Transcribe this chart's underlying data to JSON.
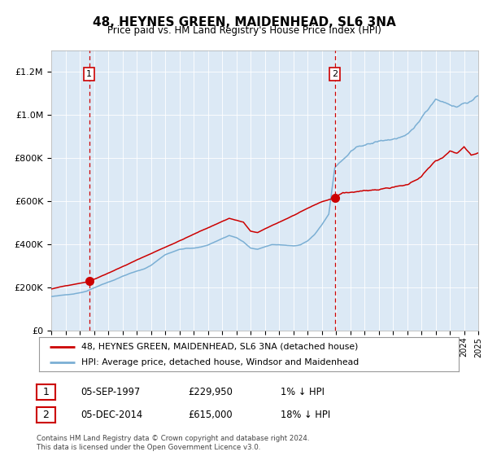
{
  "title": "48, HEYNES GREEN, MAIDENHEAD, SL6 3NA",
  "subtitle": "Price paid vs. HM Land Registry's House Price Index (HPI)",
  "legend_line1": "48, HEYNES GREEN, MAIDENHEAD, SL6 3NA (detached house)",
  "legend_line2": "HPI: Average price, detached house, Windsor and Maidenhead",
  "annotation1_date": "05-SEP-1997",
  "annotation1_price": "£229,950",
  "annotation1_hpi": "1% ↓ HPI",
  "annotation1_year": 1997.67,
  "annotation1_value": 229950,
  "annotation2_date": "05-DEC-2014",
  "annotation2_price": "£615,000",
  "annotation2_hpi": "18% ↓ HPI",
  "annotation2_year": 2014.92,
  "annotation2_value": 615000,
  "footer_line1": "Contains HM Land Registry data © Crown copyright and database right 2024.",
  "footer_line2": "This data is licensed under the Open Government Licence v3.0.",
  "red_color": "#cc0000",
  "blue_color": "#7bafd4",
  "plot_bg": "#dce9f5",
  "ylim_max": 1300000,
  "xmin": 1995,
  "xmax": 2025
}
